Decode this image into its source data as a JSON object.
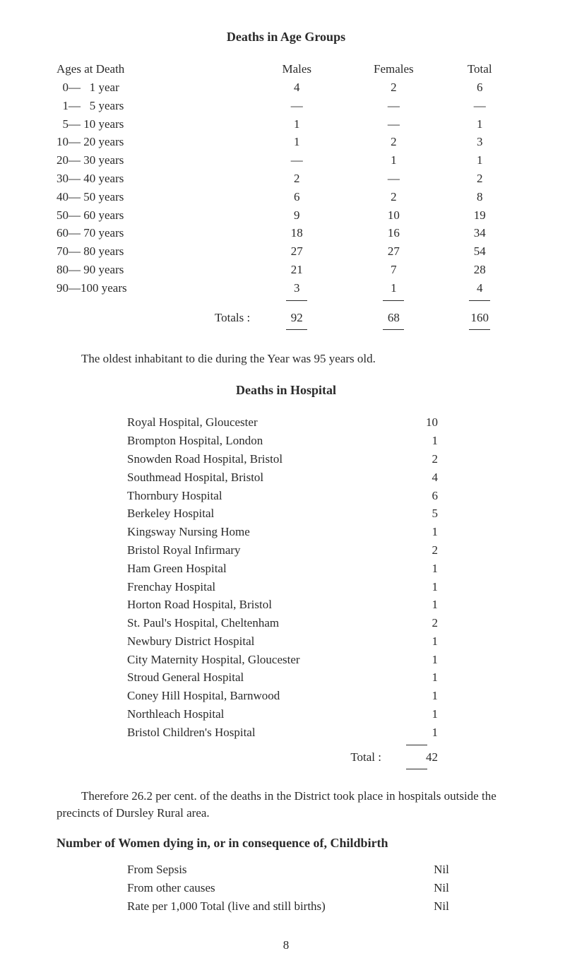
{
  "title1": "Deaths in Age Groups",
  "table1": {
    "headers": {
      "age": "Ages at Death",
      "males": "Males",
      "females": "Females",
      "total": "Total"
    },
    "rows": [
      {
        "age": "  0—   1 year",
        "males": "4",
        "females": "2",
        "total": "6"
      },
      {
        "age": "  1—   5 years",
        "males": "—",
        "females": "—",
        "total": "—"
      },
      {
        "age": "  5— 10 years",
        "males": "1",
        "females": "—",
        "total": "1"
      },
      {
        "age": "10— 20 years",
        "males": "1",
        "females": "2",
        "total": "3"
      },
      {
        "age": "20— 30 years",
        "males": "—",
        "females": "1",
        "total": "1"
      },
      {
        "age": "30— 40 years",
        "males": "2",
        "females": "—",
        "total": "2"
      },
      {
        "age": "40— 50 years",
        "males": "6",
        "females": "2",
        "total": "8"
      },
      {
        "age": "50— 60 years",
        "males": "9",
        "females": "10",
        "total": "19"
      },
      {
        "age": "60— 70 years",
        "males": "18",
        "females": "16",
        "total": "34"
      },
      {
        "age": "70— 80 years",
        "males": "27",
        "females": "27",
        "total": "54"
      },
      {
        "age": "80— 90 years",
        "males": "21",
        "females": "7",
        "total": "28"
      },
      {
        "age": "90—100 years",
        "males": "3",
        "females": "1",
        "total": "4"
      }
    ],
    "totals": {
      "label": "Totals :",
      "males": "92",
      "females": "68",
      "total": "160"
    }
  },
  "para1": "The oldest inhabitant to die during the Year was 95 years old.",
  "title2": "Deaths in Hospital",
  "hospitals": {
    "rows": [
      {
        "name": "Royal Hospital, Gloucester",
        "val": "10"
      },
      {
        "name": "Brompton Hospital, London",
        "val": "1"
      },
      {
        "name": "Snowden Road Hospital, Bristol",
        "val": "2"
      },
      {
        "name": "Southmead Hospital, Bristol",
        "val": "4"
      },
      {
        "name": "Thornbury Hospital",
        "val": "6"
      },
      {
        "name": "Berkeley Hospital",
        "val": "5"
      },
      {
        "name": "Kingsway Nursing Home",
        "val": "1"
      },
      {
        "name": "Bristol Royal Infirmary",
        "val": "2"
      },
      {
        "name": "Ham Green Hospital",
        "val": "1"
      },
      {
        "name": "Frenchay Hospital",
        "val": "1"
      },
      {
        "name": "Horton Road Hospital, Bristol",
        "val": "1"
      },
      {
        "name": "St. Paul's Hospital, Cheltenham",
        "val": "2"
      },
      {
        "name": "Newbury District Hospital",
        "val": "1"
      },
      {
        "name": "City Maternity Hospital, Gloucester",
        "val": "1"
      },
      {
        "name": "Stroud General Hospital",
        "val": "1"
      },
      {
        "name": "Coney Hill Hospital, Barnwood",
        "val": "1"
      },
      {
        "name": "Northleach Hospital",
        "val": "1"
      },
      {
        "name": "Bristol Children's Hospital",
        "val": "1"
      }
    ],
    "total": {
      "label": "Total :",
      "val": "42"
    }
  },
  "para2": "Therefore 26.2 per cent. of the deaths in the District took place in hospitals outside the precincts of Dursley Rural area.",
  "title3": "Number of Women dying in, or in consequence of, Childbirth",
  "childbirth": {
    "rows": [
      {
        "name": "From Sepsis",
        "val": "Nil"
      },
      {
        "name": "From other causes",
        "val": "Nil"
      },
      {
        "name": "Rate per 1,000 Total (live and still births)",
        "val": "Nil"
      }
    ]
  },
  "pageNum": "8"
}
